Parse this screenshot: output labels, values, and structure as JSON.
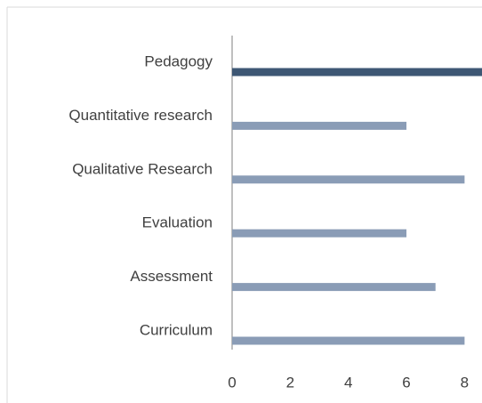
{
  "chart_data": {
    "type": "bar",
    "orientation": "horizontal",
    "categories": [
      "Pedagogy",
      "Quantitative  research",
      "Qualitative Research",
      "Evaluation",
      "Assessment",
      "Curriculum"
    ],
    "values": [
      8.6,
      6,
      8,
      6,
      7,
      8
    ],
    "colors": [
      "#3e5774",
      "#8a9cb6",
      "#8a9cb6",
      "#8a9cb6",
      "#8a9cb6",
      "#8a9cb6"
    ],
    "xlim": [
      0,
      8.6
    ],
    "xticks": [
      0,
      2,
      4,
      6,
      8
    ],
    "grid": false
  }
}
